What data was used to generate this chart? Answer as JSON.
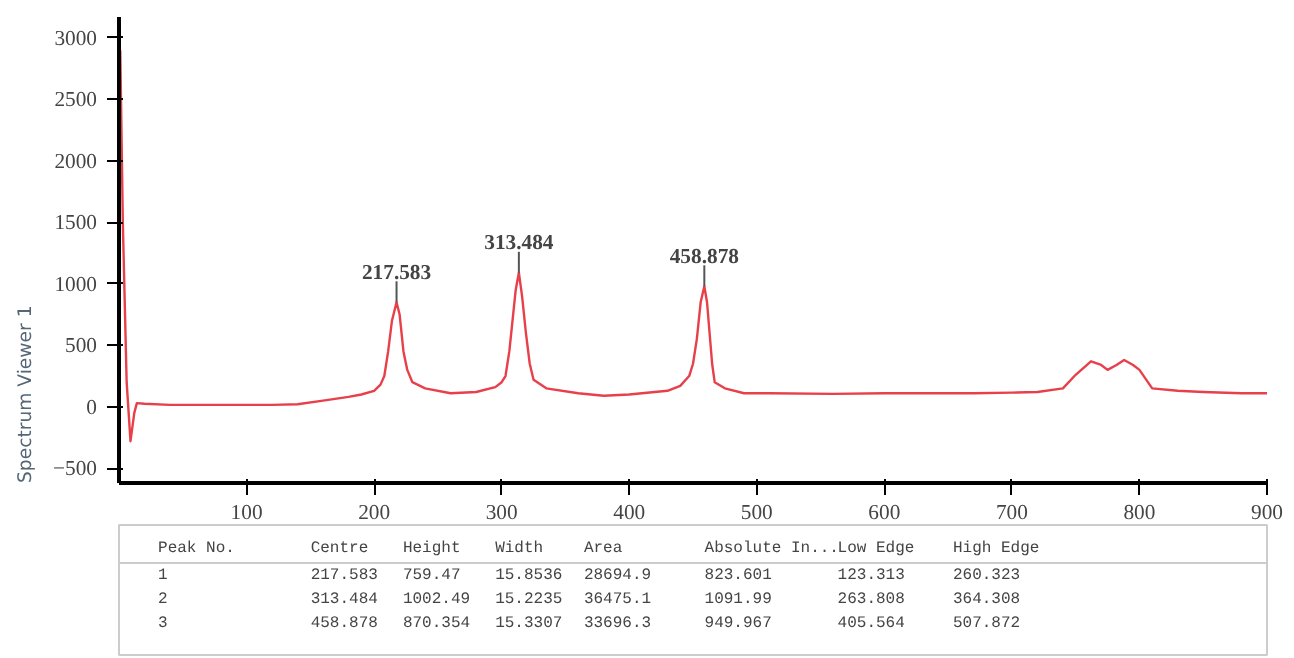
{
  "chart_data": {
    "type": "line",
    "x": [
      1,
      3,
      6,
      9,
      12,
      14,
      20,
      40,
      80,
      120,
      140,
      160,
      180,
      190,
      200,
      205,
      208,
      211,
      214,
      217.583,
      220,
      223,
      226,
      230,
      240,
      260,
      280,
      295,
      300,
      303,
      306,
      308,
      311,
      313.484,
      316,
      319,
      322,
      325,
      335,
      360,
      380,
      400,
      430,
      440,
      447,
      450,
      453,
      456,
      458.878,
      461,
      463,
      465,
      467,
      475,
      490,
      510,
      560,
      600,
      670,
      700,
      720,
      740,
      750,
      762,
      770,
      775,
      782,
      788,
      795,
      800,
      810,
      830,
      850,
      880,
      900
    ],
    "series": [
      {
        "color": "#e8404a",
        "values": [
          2900,
          1500,
          200,
          -280,
          -50,
          30,
          25,
          15,
          15,
          15,
          20,
          50,
          80,
          100,
          130,
          180,
          250,
          450,
          700,
          850,
          750,
          450,
          300,
          200,
          150,
          110,
          120,
          160,
          200,
          250,
          450,
          650,
          950,
          1090,
          900,
          600,
          350,
          220,
          150,
          110,
          90,
          100,
          130,
          170,
          250,
          350,
          550,
          850,
          980,
          850,
          600,
          350,
          200,
          150,
          110,
          110,
          105,
          110,
          110,
          115,
          120,
          150,
          260,
          370,
          340,
          300,
          340,
          380,
          340,
          300,
          150,
          130,
          120,
          110,
          110
        ]
      }
    ],
    "xlim": [
      0,
      900
    ],
    "ylim": [
      -620,
      3170
    ],
    "xticks": [
      100,
      200,
      300,
      400,
      500,
      600,
      700,
      800,
      900
    ],
    "yticks": [
      -500,
      0,
      500,
      1000,
      1500,
      2000,
      2500,
      3000
    ],
    "grid": false,
    "annotations": [
      {
        "text": "217.583",
        "x": 217.583,
        "y": 850
      },
      {
        "text": "313.484",
        "x": 313.484,
        "y": 1090
      },
      {
        "text": "458.878",
        "x": 458.878,
        "y": 980
      },
      "Spectrum Viewer 1",
      "Peak No.",
      "Centre",
      "Height",
      "Width",
      "Area",
      "Absolute In...",
      "Low Edge",
      "High Edge",
      "1",
      "217.583",
      "759.47",
      "15.8536",
      "28694.9",
      "823.601",
      "123.313",
      "260.323",
      "2",
      "313.484",
      "1002.49",
      "15.2235",
      "36475.1",
      "1091.99",
      "263.808",
      "364.308",
      "3",
      "458.878",
      "870.354",
      "15.3307",
      "33696.3",
      "949.967",
      "405.564",
      "507.872"
    ]
  }
}
